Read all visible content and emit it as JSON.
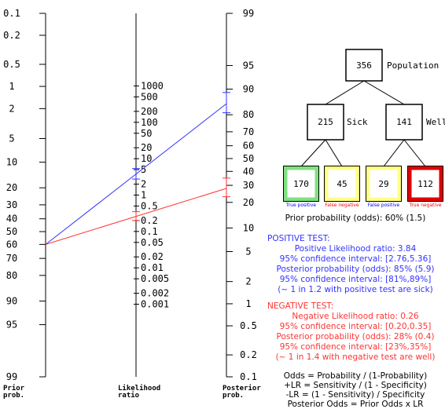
{
  "nomogram": {
    "axes": {
      "prior": {
        "label": [
          "Prior",
          "prob."
        ],
        "ticks": [
          0.1,
          0.2,
          0.5,
          1,
          2,
          5,
          10,
          20,
          30,
          40,
          50,
          60,
          70,
          80,
          90,
          95,
          99
        ]
      },
      "lr": {
        "label": [
          "Likelihood",
          "ratio"
        ],
        "ticks": [
          1000,
          500,
          200,
          100,
          50,
          20,
          10,
          5,
          2,
          1,
          0.5,
          0.2,
          0.1,
          0.05,
          0.02,
          0.01,
          0.005,
          0.002,
          0.001
        ]
      },
      "posterior": {
        "label": [
          "Posterior",
          "prob."
        ],
        "ticks": [
          99,
          95,
          90,
          80,
          70,
          60,
          50,
          40,
          30,
          20,
          10,
          5,
          2,
          1,
          0.5,
          0.2,
          0.1
        ]
      }
    },
    "prior": 60,
    "positive": {
      "color": "#3333ff",
      "lr": 3.84,
      "lr_ci": [
        2.76,
        5.36
      ],
      "posterior": 85,
      "posterior_ci": [
        81,
        89
      ]
    },
    "negative": {
      "color": "#ff3333",
      "lr": 0.26,
      "lr_ci": [
        0.2,
        0.35
      ],
      "posterior": 28,
      "posterior_ci": [
        23,
        35
      ]
    }
  },
  "tree": {
    "population": {
      "value": 356,
      "label": "Population"
    },
    "sick": {
      "value": 215,
      "label": "Sick"
    },
    "well": {
      "value": 141,
      "label": "Well"
    },
    "leaves": [
      {
        "value": 170,
        "caption": "True positive"
      },
      {
        "value": 45,
        "caption": "False negative"
      },
      {
        "value": 29,
        "caption": "False positive"
      },
      {
        "value": 112,
        "caption": "True negative"
      }
    ],
    "prior": "Prior probability (odds): 60% (1.5)"
  },
  "positive_test": {
    "heading": "POSITIVE TEST:",
    "lines": [
      "Positive Likelihood ratio: 3.84",
      "95% confidence interval: [2.76,5.36]",
      "Posterior probability (odds): 85% (5.9)",
      "95% confidence interval: [81%,89%]",
      "(~ 1 in 1.2 with positive test are sick)"
    ]
  },
  "negative_test": {
    "heading": "NEGATIVE TEST:",
    "lines": [
      "Negative Likelihood ratio: 0.26",
      "95% confidence interval: [0.20,0.35]",
      "Posterior probability (odds): 28% (0.4)",
      "95% confidence interval: [23%,35%]",
      "(~ 1 in 1.4 with negative test are well)"
    ]
  },
  "formulas": [
    "Odds = Probability / (1-Probability)",
    "+LR = Sensitivity / (1 - Specificity)",
    "-LR = (1 - Sensitivity) / Specificity",
    "Posterior Odds = Prior Odds x LR"
  ]
}
